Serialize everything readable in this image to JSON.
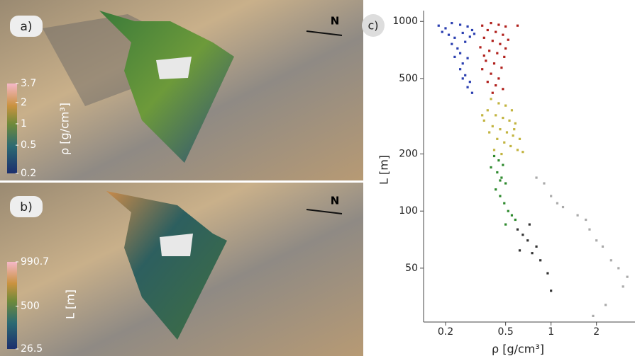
{
  "panel_a": {
    "label": "a)",
    "north": "N",
    "colorbar": {
      "title": "ρ [g/cm³]",
      "ticks": [
        3.7,
        2,
        1,
        0.5,
        0.2
      ],
      "lim": [
        0.2,
        3.7
      ],
      "log": true
    }
  },
  "panel_b": {
    "label": "b)",
    "north": "N",
    "colorbar": {
      "title": "L [m]",
      "ticks": [
        990.7,
        500,
        26.5
      ],
      "lim": [
        26.5,
        990.7
      ],
      "log": false
    }
  },
  "chart_data": {
    "type": "scatter",
    "panel_label": "c)",
    "x_label": "ρ [g/cm³]",
    "y_label": "L [m]",
    "xlog": true,
    "ylog": true,
    "xlim": [
      0.143,
      3.6
    ],
    "ylim": [
      26,
      1140
    ],
    "xticks": [
      0.2,
      0.5,
      1,
      2
    ],
    "yticks": [
      50,
      100,
      200,
      500,
      1000
    ],
    "series": [
      {
        "color": "#2b3fb0",
        "x": [
          0.18,
          0.2,
          0.22,
          0.25,
          0.28,
          0.3,
          0.19,
          0.21,
          0.23,
          0.26,
          0.29,
          0.22,
          0.24,
          0.27,
          0.25,
          0.23,
          0.26,
          0.28,
          0.25,
          0.27,
          0.29,
          0.28,
          0.3,
          0.26,
          0.31
        ],
        "y": [
          950,
          920,
          980,
          960,
          940,
          900,
          880,
          850,
          820,
          870,
          830,
          760,
          720,
          780,
          680,
          650,
          600,
          640,
          560,
          520,
          480,
          450,
          420,
          500,
          860
        ]
      },
      {
        "color": "#b0201c",
        "x": [
          0.35,
          0.4,
          0.45,
          0.5,
          0.6,
          0.38,
          0.43,
          0.48,
          0.36,
          0.41,
          0.46,
          0.52,
          0.34,
          0.39,
          0.44,
          0.49,
          0.37,
          0.42,
          0.47,
          0.35,
          0.4,
          0.45,
          0.38,
          0.43,
          0.48,
          0.41,
          0.5,
          0.36
        ],
        "y": [
          950,
          980,
          960,
          940,
          950,
          900,
          880,
          850,
          820,
          790,
          760,
          800,
          730,
          700,
          680,
          650,
          620,
          600,
          570,
          560,
          530,
          500,
          480,
          460,
          440,
          420,
          720,
          660
        ]
      },
      {
        "color": "#c2b440",
        "x": [
          0.4,
          0.45,
          0.5,
          0.55,
          0.38,
          0.43,
          0.48,
          0.53,
          0.58,
          0.36,
          0.41,
          0.46,
          0.51,
          0.56,
          0.62,
          0.39,
          0.44,
          0.49,
          0.54,
          0.6,
          0.65,
          0.47,
          0.42,
          0.57,
          0.35
        ],
        "y": [
          390,
          370,
          360,
          340,
          340,
          320,
          310,
          300,
          290,
          300,
          280,
          270,
          260,
          250,
          240,
          260,
          240,
          230,
          220,
          210,
          205,
          200,
          210,
          270,
          320
        ]
      },
      {
        "color": "#2e8a2e",
        "x": [
          0.42,
          0.45,
          0.48,
          0.4,
          0.44,
          0.47,
          0.5,
          0.43,
          0.46,
          0.49,
          0.52,
          0.55,
          0.5,
          0.58,
          0.46
        ],
        "y": [
          195,
          185,
          175,
          170,
          160,
          150,
          140,
          130,
          120,
          110,
          100,
          95,
          85,
          90,
          145
        ]
      },
      {
        "color": "#333333",
        "x": [
          0.6,
          0.65,
          0.7,
          0.62,
          0.75,
          0.85,
          0.95,
          1.0,
          0.8,
          0.72
        ],
        "y": [
          80,
          75,
          70,
          62,
          60,
          55,
          47,
          38,
          65,
          85
        ]
      },
      {
        "color": "#aaaaaa",
        "x": [
          0.8,
          0.9,
          1.0,
          1.1,
          1.2,
          1.5,
          1.7,
          1.8,
          2.0,
          2.2,
          2.5,
          2.8,
          3.0,
          2.3,
          1.9,
          3.2
        ],
        "y": [
          150,
          140,
          120,
          110,
          105,
          95,
          90,
          80,
          70,
          65,
          55,
          50,
          40,
          32,
          28,
          45
        ]
      }
    ]
  }
}
